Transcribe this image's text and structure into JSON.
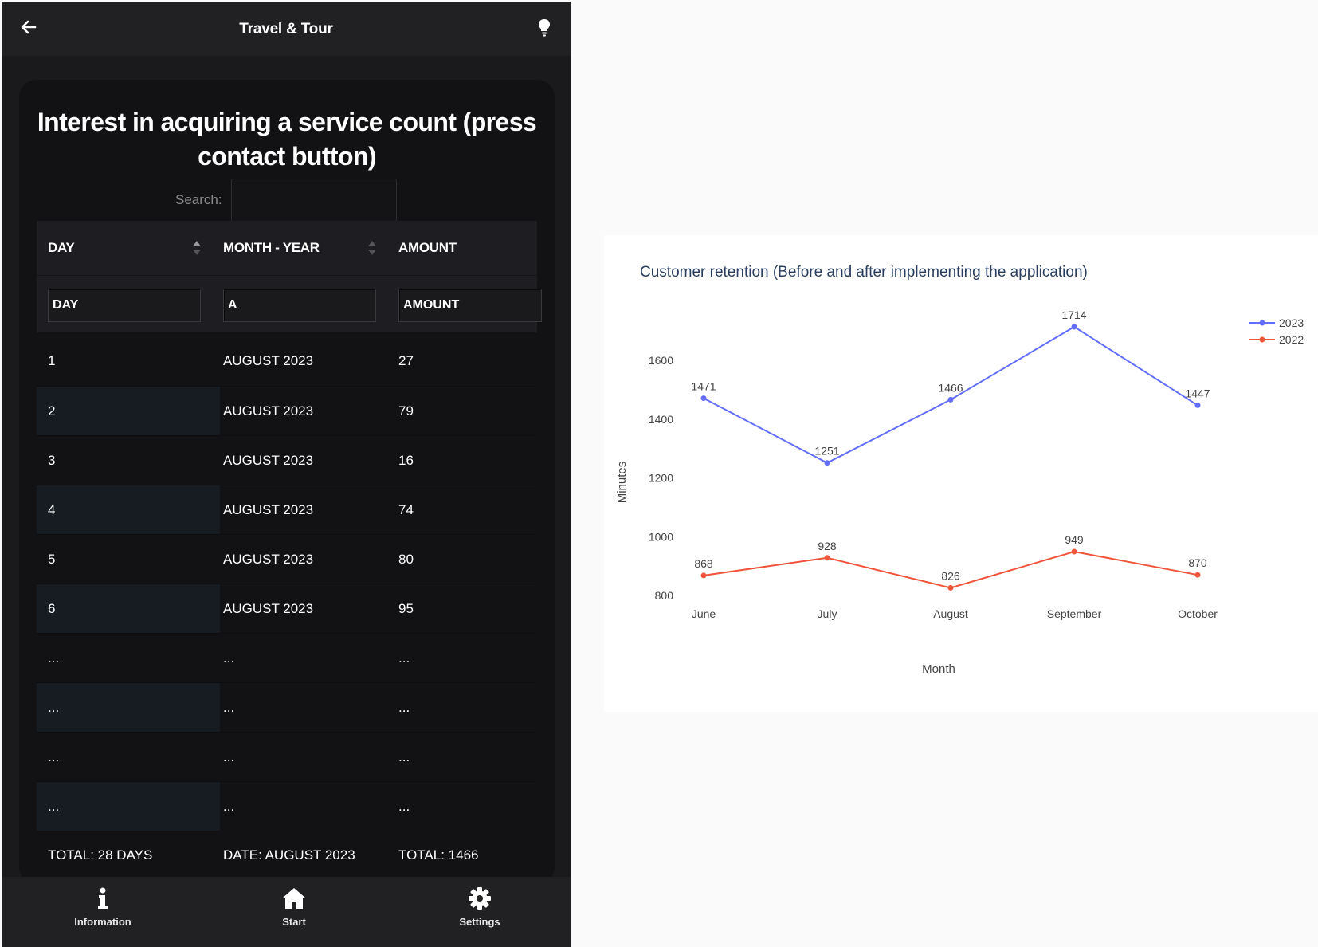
{
  "app": {
    "title": "Travel & Tour",
    "heading": "Interest in acquiring a service count (press contact button)",
    "search_label": "Search:",
    "search_value": "",
    "columns": [
      "DAY",
      "MONTH - YEAR",
      "AMOUNT"
    ],
    "filters": [
      "DAY",
      "A",
      "AMOUNT"
    ],
    "rows": [
      [
        "1",
        "AUGUST 2023",
        "27"
      ],
      [
        "2",
        "AUGUST 2023",
        "79"
      ],
      [
        "3",
        "AUGUST 2023",
        "16"
      ],
      [
        "4",
        "AUGUST 2023",
        "74"
      ],
      [
        "5",
        "AUGUST 2023",
        "80"
      ],
      [
        "6",
        "AUGUST 2023",
        "95"
      ],
      [
        "...",
        "...",
        "..."
      ],
      [
        "...",
        "...",
        "..."
      ],
      [
        "...",
        "...",
        "..."
      ],
      [
        "...",
        "...",
        "..."
      ]
    ],
    "footer": [
      "TOTAL: 28 DAYS",
      "DATE: AUGUST 2023",
      "TOTAL: 1466"
    ],
    "nav": [
      {
        "label": "Information",
        "icon": "info-icon"
      },
      {
        "label": "Start",
        "icon": "home-icon"
      },
      {
        "label": "Settings",
        "icon": "gear-icon"
      }
    ],
    "colors": {
      "background": "#1a1a1d",
      "card": "#121214",
      "bar": "#212124"
    }
  },
  "chart_data": {
    "type": "line",
    "title": "Customer retention (Before and after implementing the application)",
    "xlabel": "Month",
    "ylabel": "Minutes",
    "categories": [
      "June",
      "July",
      "August",
      "September",
      "October"
    ],
    "yticks": [
      800,
      1000,
      1200,
      1400,
      1600
    ],
    "ylim": [
      800,
      1714
    ],
    "legend_position": "top-right",
    "series": [
      {
        "name": "2023",
        "color": "#636efa",
        "values": [
          1471,
          1251,
          1466,
          1714,
          1447
        ]
      },
      {
        "name": "2022",
        "color": "#ef553b",
        "values": [
          868,
          928,
          826,
          949,
          870
        ]
      }
    ]
  }
}
